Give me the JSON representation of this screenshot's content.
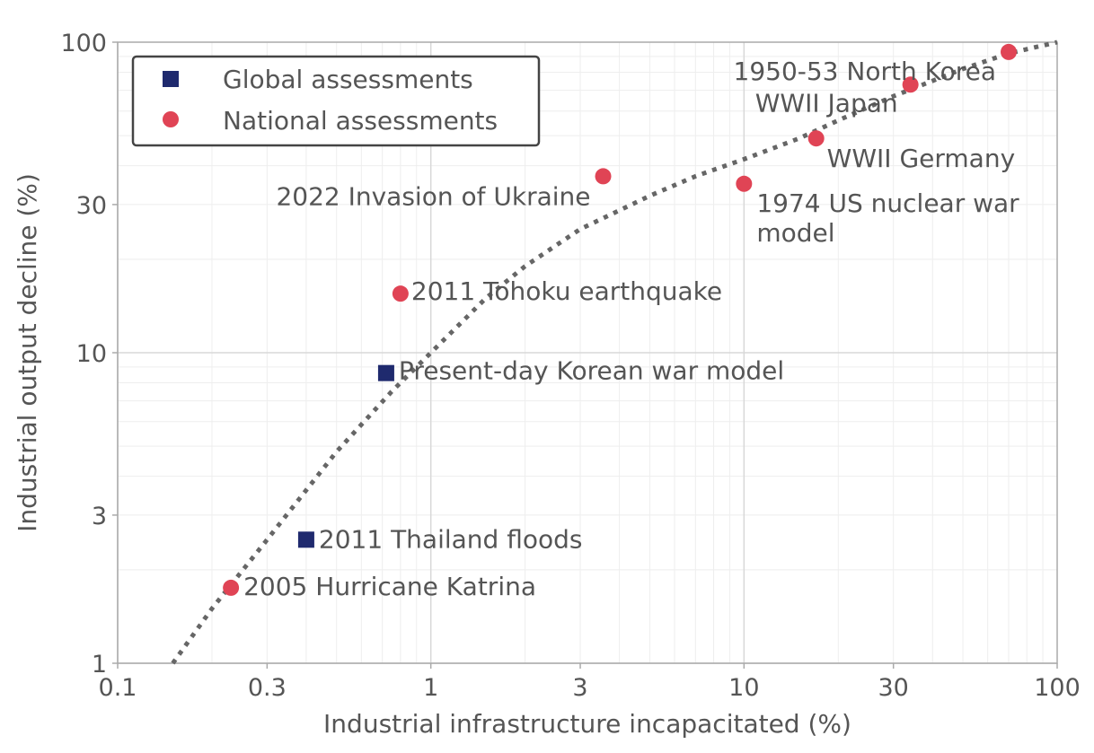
{
  "chart_data": {
    "type": "scatter",
    "x_scale": "log",
    "y_scale": "log",
    "xlabel": "Industrial infrastructure incapacitated (%)",
    "ylabel": "Industrial output decline (%)",
    "xlim": [
      0.1,
      100
    ],
    "ylim": [
      1,
      100
    ],
    "x_ticks": [
      0.1,
      0.3,
      1,
      3,
      10,
      30,
      100
    ],
    "x_tick_labels": [
      "0.1",
      "0.3",
      "1",
      "3",
      "10",
      "30",
      "100"
    ],
    "y_ticks": [
      1,
      3,
      10,
      30,
      100
    ],
    "y_tick_labels": [
      "1",
      "3",
      "10",
      "30",
      "100"
    ],
    "grid": true,
    "legend": {
      "position": "top-left",
      "entries": [
        {
          "label": "Global assessments",
          "marker": "square",
          "color": "#1f2a6e"
        },
        {
          "label": "National assessments",
          "marker": "circle",
          "color": "#e04455"
        }
      ]
    },
    "series": [
      {
        "name": "Global assessments",
        "marker": "square",
        "color": "#1f2a6e",
        "points": [
          {
            "label": "2011 Thailand floods",
            "x": 0.4,
            "y": 2.5
          },
          {
            "label": "Present-day Korean war model",
            "x": 0.72,
            "y": 8.6
          }
        ]
      },
      {
        "name": "National assessments",
        "marker": "circle",
        "color": "#e04455",
        "points": [
          {
            "label": "2005 Hurricane Katrina",
            "x": 0.23,
            "y": 1.75
          },
          {
            "label": "2011 Tohoku earthquake",
            "x": 0.8,
            "y": 15.5
          },
          {
            "label": "2022 Invasion of Ukraine",
            "x": 3.55,
            "y": 37
          },
          {
            "label": "1974 US nuclear war model",
            "x": 10,
            "y": 35
          },
          {
            "label": "WWII Germany",
            "x": 17,
            "y": 49
          },
          {
            "label": "WWII Japan",
            "x": 34,
            "y": 73
          },
          {
            "label": "1950-53 North Korea",
            "x": 70,
            "y": 93
          }
        ]
      }
    ],
    "trend_line": {
      "style": "dotted",
      "color": "#666666",
      "points": [
        [
          0.15,
          1.0
        ],
        [
          0.2,
          1.5
        ],
        [
          0.3,
          2.5
        ],
        [
          0.5,
          4.8
        ],
        [
          0.75,
          7.5
        ],
        [
          1,
          10
        ],
        [
          1.5,
          15
        ],
        [
          2,
          19
        ],
        [
          3,
          25
        ],
        [
          5,
          32
        ],
        [
          7,
          37
        ],
        [
          10,
          42
        ],
        [
          15,
          49
        ],
        [
          20,
          56
        ],
        [
          30,
          67
        ],
        [
          50,
          82
        ],
        [
          70,
          92
        ],
        [
          100,
          100
        ]
      ]
    }
  }
}
